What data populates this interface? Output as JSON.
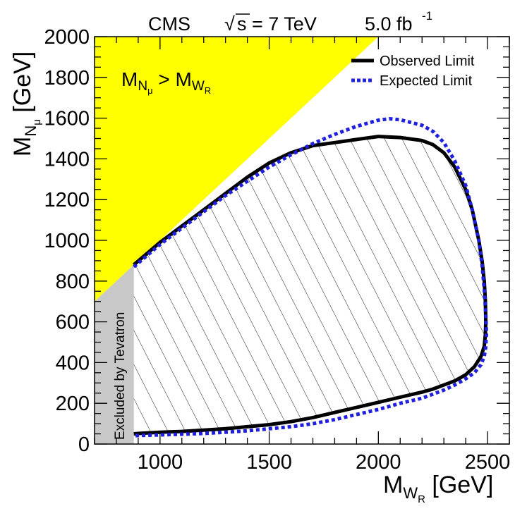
{
  "header": {
    "experiment": "CMS",
    "sqrt_symbol": "√",
    "energy": "s = 7 TeV",
    "lumi": "5.0 fb",
    "lumi_exp": "-1"
  },
  "colors": {
    "kinematic_region": "#ffff00",
    "tevatron_region": "#c8c8c8",
    "observed": "#000000",
    "expected": "#1f1fe0",
    "hatch": "#000000"
  },
  "chart_data": {
    "type": "line",
    "title": "CMS √s = 7 TeV 5.0 fb-1",
    "xlabel": "M_{W_R} [GeV]",
    "ylabel": "M_{N_μ} [GeV]",
    "xlabel_parts": {
      "main": "M",
      "sub": "W",
      "subsub": "R",
      "unit": " [GeV]"
    },
    "ylabel_parts": {
      "main": "M",
      "sub": "N",
      "subsub": "μ",
      "unit": " [GeV]"
    },
    "xlim": [
      700,
      2600
    ],
    "ylim": [
      0,
      2000
    ],
    "xticks": [
      1000,
      1500,
      2000,
      2500
    ],
    "yticks": [
      0,
      200,
      400,
      600,
      800,
      1000,
      1200,
      1400,
      1600,
      1800,
      2000
    ],
    "grid": false,
    "legend_position": "top-right",
    "series": [
      {
        "name": "Observed Limit",
        "style": "solid",
        "x": [
          880,
          1000,
          1100,
          1200,
          1300,
          1400,
          1500,
          1600,
          1700,
          1800,
          1900,
          2000,
          2100,
          2200,
          2250,
          2300,
          2350,
          2400,
          2430,
          2460,
          2475,
          2485,
          2490,
          2492,
          2490,
          2485,
          2470,
          2440,
          2400,
          2350,
          2300,
          2250,
          2200,
          2100,
          2000,
          1900,
          1800,
          1700,
          1600,
          1500,
          1400,
          1300,
          1200,
          1100,
          1000,
          900,
          880
        ],
        "y": [
          880,
          990,
          1070,
          1150,
          1230,
          1310,
          1380,
          1430,
          1465,
          1480,
          1495,
          1510,
          1505,
          1490,
          1470,
          1430,
          1360,
          1250,
          1150,
          1000,
          900,
          800,
          700,
          600,
          540,
          480,
          430,
          380,
          340,
          310,
          290,
          270,
          255,
          230,
          205,
          180,
          155,
          130,
          110,
          95,
          85,
          75,
          68,
          62,
          58,
          52,
          50
        ]
      },
      {
        "name": "Expected Limit",
        "style": "dotted",
        "x": [
          880,
          1000,
          1100,
          1200,
          1300,
          1400,
          1500,
          1600,
          1700,
          1800,
          1900,
          2000,
          2050,
          2100,
          2200,
          2250,
          2300,
          2350,
          2400,
          2430,
          2460,
          2475,
          2485,
          2492,
          2495,
          2492,
          2485,
          2470,
          2440,
          2400,
          2350,
          2300,
          2250,
          2200,
          2100,
          2000,
          1900,
          1800,
          1700,
          1600,
          1500,
          1400,
          1300,
          1200,
          1100,
          1000,
          900,
          880
        ],
        "y": [
          870,
          980,
          1060,
          1140,
          1220,
          1290,
          1360,
          1420,
          1475,
          1520,
          1560,
          1590,
          1597,
          1592,
          1565,
          1535,
          1480,
          1390,
          1270,
          1150,
          1000,
          880,
          760,
          640,
          540,
          480,
          430,
          390,
          350,
          320,
          290,
          265,
          245,
          225,
          200,
          170,
          145,
          120,
          100,
          85,
          75,
          65,
          58,
          52,
          48,
          45,
          42,
          40
        ]
      }
    ],
    "regions": [
      {
        "name": "M_{N_μ} > M_{W_R}",
        "label_main": "M",
        "label_sub": "N",
        "label_subsub": "μ",
        "label_op": " > ",
        "label_main2": "M",
        "label_sub2": "W",
        "label_subsub2": "R"
      },
      {
        "name": "Excluded by Tevatron",
        "label": "Excluded by Tevatron",
        "x_range": [
          700,
          880
        ],
        "y_range": [
          0,
          880
        ]
      }
    ]
  }
}
